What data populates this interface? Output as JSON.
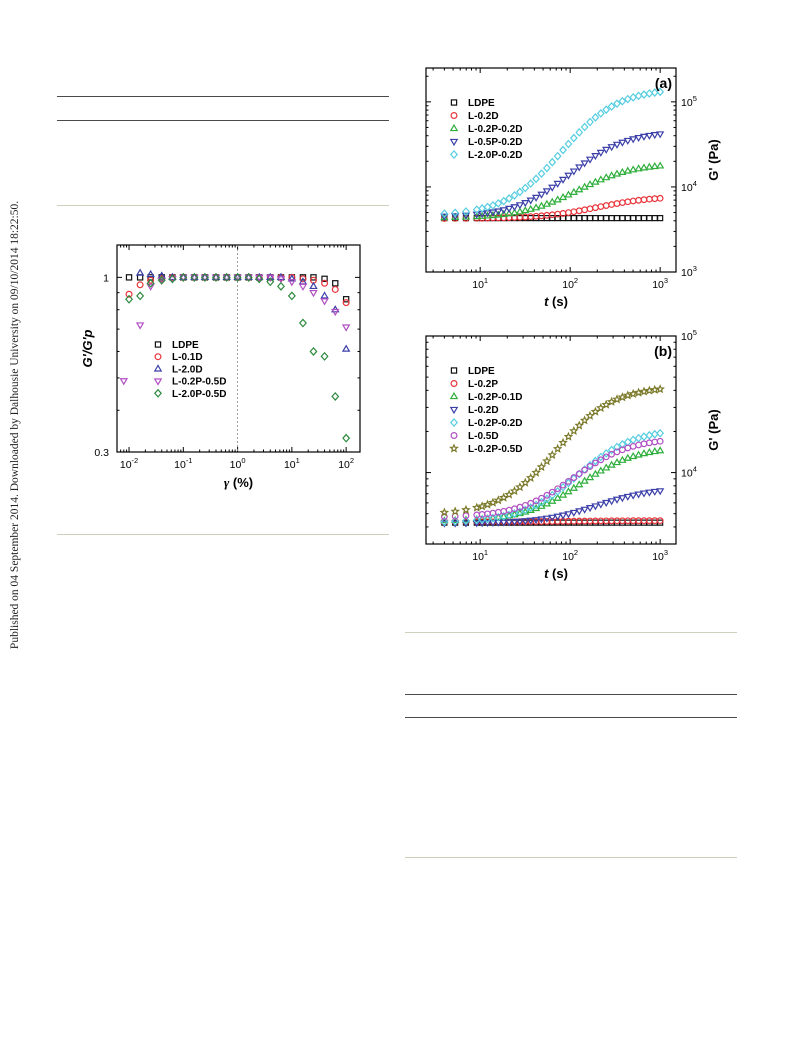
{
  "side_note": "Published on 04 September 2014. Downloaded by Dalhousie University on 09/10/2014 18:22:50.",
  "colors": {
    "LDPE": "#111111",
    "red": "#e8333a",
    "blue": "#3b3fa8",
    "green": "#2fae3c",
    "magenta": "#b04ec2",
    "cyan": "#55cde0",
    "olive": "#7b7a2a",
    "dgreen": "#2e8a3e"
  },
  "chart_data": [
    {
      "id": "left",
      "type": "scatter",
      "title": "",
      "xlabel": "γ (%)",
      "ylabel": "G'/G'p",
      "xscale": "log",
      "yscale": "log",
      "xlim": [
        0.006,
        180
      ],
      "ylim": [
        0.3,
        1.25
      ],
      "xticks": [
        "10-2",
        "10-1",
        "100",
        "101",
        "102"
      ],
      "yticks": [
        "0.3",
        "1"
      ],
      "vline_x": 1,
      "legend_position": "center-left",
      "series": [
        {
          "name": "LDPE",
          "marker": "square",
          "color": "#111111",
          "x": [
            0.01,
            0.016,
            0.025,
            0.04,
            0.063,
            0.1,
            0.16,
            0.25,
            0.4,
            0.63,
            1,
            1.6,
            2.5,
            4,
            6.3,
            10,
            16,
            25,
            40,
            63,
            100
          ],
          "y": [
            1.0,
            1.0,
            1.0,
            1.0,
            1.0,
            1.0,
            1.0,
            1.0,
            1.0,
            1.0,
            1.0,
            1.0,
            1.0,
            1.0,
            1.0,
            1.0,
            1.0,
            1.0,
            0.99,
            0.96,
            0.86
          ]
        },
        {
          "name": "L-0.1D",
          "marker": "circle",
          "color": "#e8333a",
          "x": [
            0.01,
            0.016,
            0.025,
            0.04,
            0.063,
            0.1,
            0.16,
            0.25,
            0.4,
            0.63,
            1,
            1.6,
            2.5,
            4,
            6.3,
            10,
            16,
            25,
            40,
            63,
            100
          ],
          "y": [
            0.89,
            0.95,
            0.98,
            0.99,
            1.0,
            1.0,
            1.0,
            1.0,
            1.0,
            1.0,
            1.0,
            1.0,
            1.0,
            1.0,
            1.0,
            1.0,
            0.99,
            0.98,
            0.96,
            0.92,
            0.84
          ]
        },
        {
          "name": "L-2.0D",
          "marker": "triangle-up",
          "color": "#3b3fa8",
          "x": [
            0.016,
            0.025,
            0.04,
            0.063,
            0.1,
            0.16,
            0.25,
            0.4,
            0.63,
            1,
            1.6,
            2.5,
            4,
            6.3,
            10,
            16,
            25,
            40,
            63,
            100
          ],
          "y": [
            1.03,
            1.02,
            1.01,
            1.0,
            1.0,
            1.0,
            1.0,
            1.0,
            1.0,
            1.0,
            1.0,
            1.0,
            1.0,
            1.0,
            0.99,
            0.97,
            0.94,
            0.88,
            0.8,
            0.61
          ]
        },
        {
          "name": "L-0.2P-0.5D",
          "marker": "triangle-down",
          "color": "#b04ec2",
          "x": [
            0.008,
            0.016,
            0.025,
            0.04,
            0.063,
            0.1,
            0.16,
            0.25,
            0.4,
            0.63,
            1,
            1.6,
            2.5,
            4,
            6.3,
            10,
            16,
            25,
            40,
            63,
            100
          ],
          "y": [
            0.49,
            0.72,
            0.94,
            0.98,
            0.99,
            1.0,
            1.0,
            1.0,
            1.0,
            1.0,
            1.0,
            1.0,
            1.0,
            1.0,
            0.99,
            0.97,
            0.94,
            0.9,
            0.85,
            0.79,
            0.71
          ]
        },
        {
          "name": "L-2.0P-0.5D",
          "marker": "diamond",
          "color": "#2e8a3e",
          "x": [
            0.01,
            0.016,
            0.025,
            0.04,
            0.063,
            0.1,
            0.16,
            0.25,
            0.4,
            0.63,
            1,
            1.6,
            2.5,
            4,
            6.3,
            10,
            16,
            25,
            40,
            63,
            100
          ],
          "y": [
            0.86,
            0.88,
            0.96,
            0.98,
            0.99,
            1.0,
            1.0,
            1.0,
            1.0,
            1.0,
            1.0,
            1.0,
            0.99,
            0.97,
            0.94,
            0.88,
            0.73,
            0.6,
            0.58,
            0.44,
            0.33
          ]
        }
      ]
    },
    {
      "id": "a",
      "type": "scatter",
      "panel_label": "(a)",
      "title": "",
      "xlabel": "t (s)",
      "ylabel": "G' (Pa)",
      "xscale": "log",
      "yscale": "log",
      "xlim": [
        2.5,
        1500
      ],
      "ylim": [
        1000,
        250000
      ],
      "xticks": [
        "101",
        "102",
        "103"
      ],
      "yticks": [
        "103",
        "104",
        "105"
      ],
      "legend_position": "top-left",
      "series": [
        {
          "name": "LDPE",
          "marker": "square",
          "color": "#111111",
          "yfinal": 4300,
          "ystart": 4300,
          "t50": 30
        },
        {
          "name": "L-0.2D",
          "marker": "circle",
          "color": "#e8333a",
          "yfinal": 7800,
          "ystart": 4250,
          "t50": 200
        },
        {
          "name": "L-0.2P-0.2D",
          "marker": "triangle-up",
          "color": "#2fae3c",
          "yfinal": 19000,
          "ystart": 4300,
          "t50": 120
        },
        {
          "name": "L-0.5P-0.2D",
          "marker": "triangle-down",
          "color": "#3b3fa8",
          "yfinal": 46000,
          "ystart": 4400,
          "t50": 100
        },
        {
          "name": "L-2.0P-0.2D",
          "marker": "diamond",
          "color": "#55cde0",
          "yfinal": 145000,
          "ystart": 4600,
          "t50": 80
        }
      ]
    },
    {
      "id": "b",
      "type": "scatter",
      "panel_label": "(b)",
      "title": "",
      "xlabel": "t (s)",
      "ylabel": "G' (Pa)",
      "xscale": "log",
      "yscale": "log",
      "xlim": [
        2.5,
        1500
      ],
      "ylim": [
        3000,
        100000
      ],
      "xticks": [
        "101",
        "102",
        "103"
      ],
      "yticks": [
        "104",
        "105"
      ],
      "legend_position": "top-left",
      "series": [
        {
          "name": "LDPE",
          "marker": "square",
          "color": "#111111",
          "yfinal": 4300,
          "ystart": 4300,
          "t50": 30
        },
        {
          "name": "L-0.2P",
          "marker": "circle",
          "color": "#e8333a",
          "yfinal": 4450,
          "ystart": 4350,
          "t50": 80
        },
        {
          "name": "L-0.2P-0.1D",
          "marker": "triangle-up",
          "color": "#2fae3c",
          "yfinal": 15500,
          "ystart": 4400,
          "t50": 130
        },
        {
          "name": "L-0.2D",
          "marker": "triangle-down",
          "color": "#3b3fa8",
          "yfinal": 7800,
          "ystart": 4250,
          "t50": 200
        },
        {
          "name": "L-0.2P-0.2D",
          "marker": "diamond",
          "color": "#55cde0",
          "yfinal": 21000,
          "ystart": 4300,
          "t50": 120
        },
        {
          "name": "L-0.5D",
          "marker": "circle",
          "color": "#b04ec2",
          "yfinal": 18000,
          "ystart": 4700,
          "t50": 110
        },
        {
          "name": "L-0.2P-0.5D",
          "marker": "star",
          "color": "#7b7a2a",
          "yfinal": 43000,
          "ystart": 4900,
          "t50": 70
        }
      ]
    }
  ]
}
